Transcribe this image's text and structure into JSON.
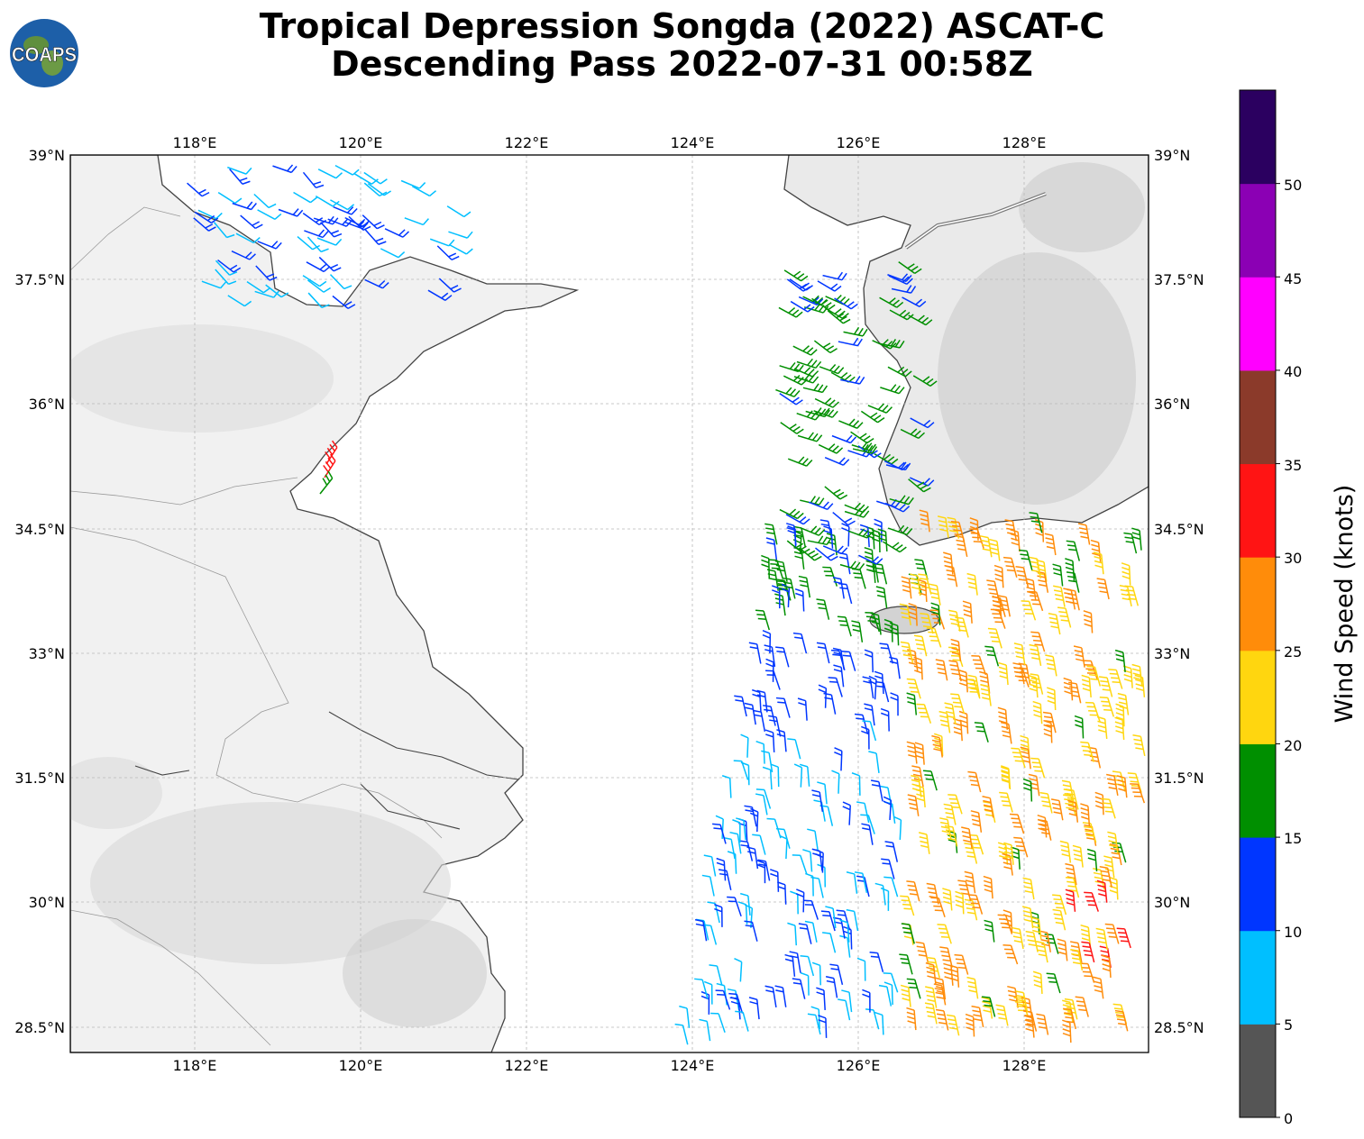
{
  "title": {
    "line1": "Tropical Depression Songda (2022) ASCAT-C",
    "line2": "Descending Pass 2022-07-31 00:58Z"
  },
  "logo": {
    "text": "COAPS"
  },
  "map": {
    "lon_ticks": [
      "118°E",
      "120°E",
      "122°E",
      "124°E",
      "126°E",
      "128°E"
    ],
    "lat_ticks_left": [
      "39°N",
      "37.5°N",
      "36°N",
      "34.5°N",
      "33°N",
      "31.5°N",
      "30°N",
      "28.5°N"
    ],
    "lat_ticks_right": [
      "39°N",
      "37.5°N",
      "36°N",
      "34.5°N",
      "33°N",
      "31.5°N",
      "30°N",
      "28.5°N"
    ],
    "lon_range": [
      116.5,
      129.5
    ],
    "lat_range": [
      28.2,
      39.0
    ]
  },
  "colorbar": {
    "label": "Wind Speed (knots)",
    "ticks": [
      "0",
      "5",
      "10",
      "15",
      "20",
      "25",
      "30",
      "35",
      "40",
      "45",
      "50"
    ],
    "colors": [
      "#555555",
      "#00bfff",
      "#0036ff",
      "#008f00",
      "#ffd60f",
      "#ff8c0a",
      "#ff1414",
      "#8b3a2a",
      "#ff00ff",
      "#8b00b4",
      "#2b0060"
    ]
  }
}
